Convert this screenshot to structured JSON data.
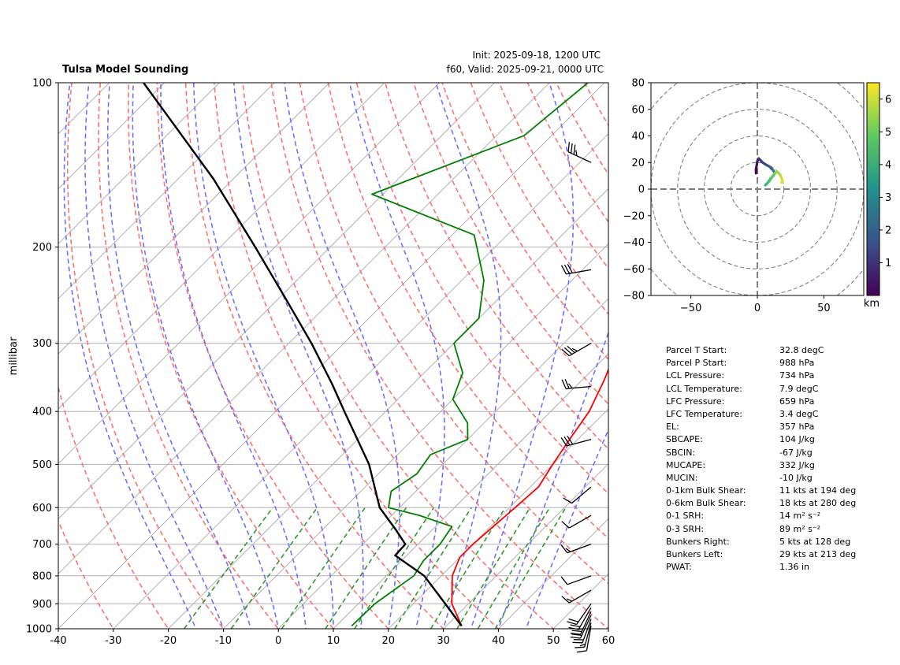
{
  "title": "Tulsa Model Sounding",
  "init_label": "Init: 2025-09-18, 1200 UTC",
  "valid_label": "f60, Valid: 2025-09-21, 0000 UTC",
  "colors": {
    "temperature": "#ff0000",
    "dewpoint": "#008000",
    "parcel": "#000000",
    "dry_adiabat": "#ff7070",
    "moist_adiabat": "#7070ff",
    "mixing_ratio": "#2e9b2e",
    "isotherm": "#b0b0b0",
    "zero_isotherm": "#8a3fc0"
  },
  "chart_data": [
    {
      "type": "skew-t",
      "ylabel": "millibar",
      "xlabel": "",
      "xlim": [
        -40,
        60
      ],
      "ylim": [
        1000,
        100
      ],
      "y_scale": "log",
      "grid": true,
      "x_ticks": [
        -40,
        -30,
        -20,
        -10,
        0,
        10,
        20,
        30,
        40,
        50,
        60
      ],
      "y_ticks": [
        1000,
        900,
        800,
        700,
        600,
        500,
        400,
        300,
        200,
        100
      ],
      "series": [
        {
          "key": "temperature",
          "p": [
            988,
            900,
            800,
            740,
            700,
            650,
            600,
            550,
            500,
            450,
            400,
            350,
            300,
            265,
            220,
            175,
            140,
            115,
            100
          ],
          "t": [
            32.8,
            27,
            22,
            20,
            20,
            20.5,
            21,
            21.5,
            20,
            18.5,
            17,
            14,
            10,
            7.4,
            13.4,
            22,
            25.4,
            29.6,
            33.6
          ]
        },
        {
          "key": "dewpoint",
          "p": [
            988,
            900,
            800,
            750,
            700,
            650,
            620,
            600,
            560,
            520,
            480,
            450,
            420,
            380,
            340,
            300,
            270,
            230,
            190,
            160,
            125,
            100
          ],
          "t": [
            12.8,
            13,
            15,
            14,
            14,
            13,
            5,
            -2,
            -4.5,
            -3,
            -4,
            0,
            -3,
            -10,
            -13,
            -20,
            -20,
            -26,
            -36,
            -62,
            -45,
            -43
          ]
        },
        {
          "key": "parcel",
          "p": [
            988,
            900,
            800,
            734,
            700,
            659,
            600,
            500,
            400,
            357,
            300,
            250,
            200,
            150,
            100
          ],
          "t": [
            32.8,
            25.8,
            16.9,
            7.9,
            7.7,
            3.4,
            -3.6,
            -13.4,
            -27.5,
            -34.6,
            -45.9,
            -58.3,
            -73.6,
            -93.6,
            -123.8
          ]
        }
      ],
      "wind_barbs": [
        {
          "p": 988,
          "speed_kts": 10,
          "dir_deg": 190
        },
        {
          "p": 975,
          "speed_kts": 15,
          "dir_deg": 195
        },
        {
          "p": 960,
          "speed_kts": 20,
          "dir_deg": 200
        },
        {
          "p": 945,
          "speed_kts": 20,
          "dir_deg": 205
        },
        {
          "p": 930,
          "speed_kts": 25,
          "dir_deg": 205
        },
        {
          "p": 915,
          "speed_kts": 20,
          "dir_deg": 210
        },
        {
          "p": 900,
          "speed_kts": 20,
          "dir_deg": 215
        },
        {
          "p": 850,
          "speed_kts": 15,
          "dir_deg": 240
        },
        {
          "p": 800,
          "speed_kts": 10,
          "dir_deg": 250
        },
        {
          "p": 700,
          "speed_kts": 15,
          "dir_deg": 250
        },
        {
          "p": 620,
          "speed_kts": 10,
          "dir_deg": 240
        },
        {
          "p": 550,
          "speed_kts": 10,
          "dir_deg": 230
        },
        {
          "p": 450,
          "speed_kts": 30,
          "dir_deg": 255
        },
        {
          "p": 360,
          "speed_kts": 25,
          "dir_deg": 265
        },
        {
          "p": 300,
          "speed_kts": 35,
          "dir_deg": 240
        },
        {
          "p": 220,
          "speed_kts": 30,
          "dir_deg": 260
        },
        {
          "p": 140,
          "speed_kts": 35,
          "dir_deg": 295
        }
      ]
    },
    {
      "type": "hodograph",
      "xlim": [
        -80,
        80
      ],
      "ylim": [
        -80,
        80
      ],
      "ring_spacing_kts": 20,
      "x_ticks": [
        -50,
        0,
        50
      ],
      "y_ticks": [
        -80,
        -60,
        -40,
        -20,
        0,
        20,
        40,
        60,
        80
      ],
      "colorbar_label": "km",
      "colorbar_ticks": [
        1,
        2,
        3,
        4,
        5,
        6
      ],
      "colorbar_range": [
        0,
        6.5
      ],
      "points": [
        {
          "u": -1,
          "v": 12,
          "h": 0.0
        },
        {
          "u": -1,
          "v": 15,
          "h": 0.1
        },
        {
          "u": -0.5,
          "v": 18,
          "h": 0.3
        },
        {
          "u": 0,
          "v": 21,
          "h": 0.5
        },
        {
          "u": 1,
          "v": 23,
          "h": 0.7
        },
        {
          "u": 2,
          "v": 22,
          "h": 0.9
        },
        {
          "u": 4,
          "v": 20,
          "h": 1.2
        },
        {
          "u": 7,
          "v": 18,
          "h": 1.5
        },
        {
          "u": 9,
          "v": 17,
          "h": 1.8
        },
        {
          "u": 11,
          "v": 15,
          "h": 2.1
        },
        {
          "u": 12,
          "v": 14,
          "h": 2.4
        },
        {
          "u": 13,
          "v": 12,
          "h": 2.8
        },
        {
          "u": 12,
          "v": 10,
          "h": 3.1
        },
        {
          "u": 10,
          "v": 8,
          "h": 3.4
        },
        {
          "u": 8,
          "v": 5,
          "h": 3.7
        },
        {
          "u": 6,
          "v": 3,
          "h": 4.0
        },
        {
          "u": 7,
          "v": 4,
          "h": 4.2
        },
        {
          "u": 9,
          "v": 6,
          "h": 4.5
        },
        {
          "u": 11,
          "v": 9,
          "h": 4.8
        },
        {
          "u": 13,
          "v": 12,
          "h": 5.1
        },
        {
          "u": 15,
          "v": 13,
          "h": 5.4
        },
        {
          "u": 17,
          "v": 11,
          "h": 5.7
        },
        {
          "u": 18,
          "v": 9,
          "h": 5.9
        },
        {
          "u": 19,
          "v": 6,
          "h": 6.1
        },
        {
          "u": 18,
          "v": 5,
          "h": 6.3
        }
      ]
    }
  ],
  "parameters": [
    {
      "label": "Parcel T Start:",
      "value": "32.8 degC"
    },
    {
      "label": "Parcel P Start:",
      "value": "988 hPa"
    },
    {
      "label": "LCL Pressure:",
      "value": "734 hPa"
    },
    {
      "label": "LCL Temperature:",
      "value": "7.9 degC"
    },
    {
      "label": "LFC Pressure:",
      "value": "659 hPa"
    },
    {
      "label": "LFC Temperature:",
      "value": "3.4 degC"
    },
    {
      "label": "EL:",
      "value": "357 hPa"
    },
    {
      "label": "SBCAPE:",
      "value": "104 J/kg"
    },
    {
      "label": "SBCIN:",
      "value": "-67 J/kg"
    },
    {
      "label": "MUCAPE:",
      "value": "332 J/kg"
    },
    {
      "label": "MUCIN:",
      "value": "-10 J/kg"
    },
    {
      "label": "0-1km Bulk Shear:",
      "value": "11 kts at 194 deg"
    },
    {
      "label": "0-6km Bulk Shear:",
      "value": "18 kts at 280 deg"
    },
    {
      "label": "0-1 SRH:",
      "value": "14 m² s⁻²"
    },
    {
      "label": "0-3 SRH:",
      "value": "89 m² s⁻²"
    },
    {
      "label": "Bunkers Right:",
      "value": "5 kts at 128 deg"
    },
    {
      "label": "Bunkers Left:",
      "value": "29 kts at 213 deg"
    },
    {
      "label": "PWAT:",
      "value": "1.36 in"
    }
  ]
}
